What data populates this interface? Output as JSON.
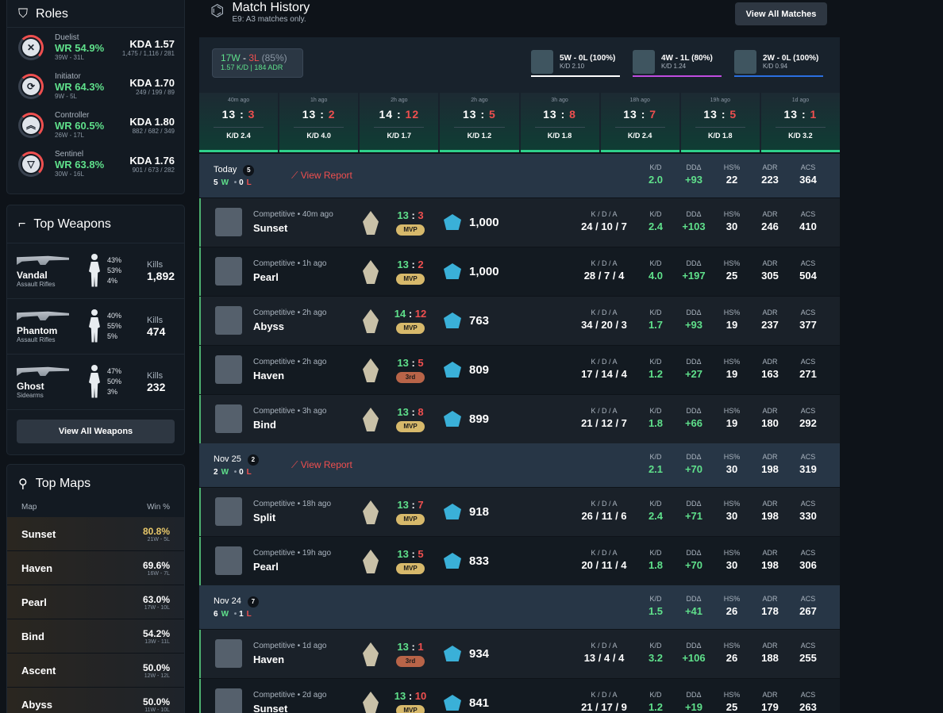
{
  "roles": {
    "title": "Roles",
    "items": [
      {
        "glyph": "✕",
        "name": "Duelist",
        "wr": "WR 54.9%",
        "wl": "39W - 31L",
        "kda": "KDA 1.57",
        "k": "1,475 / 1,116 / 281"
      },
      {
        "glyph": "⟳",
        "name": "Initiator",
        "wr": "WR 64.3%",
        "wl": "9W - 5L",
        "kda": "KDA 1.70",
        "k": "249 / 199 / 89"
      },
      {
        "glyph": "︽",
        "name": "Controller",
        "wr": "WR 60.5%",
        "wl": "26W - 17L",
        "kda": "KDA 1.80",
        "k": "882 / 682 / 349"
      },
      {
        "glyph": "▽",
        "name": "Sentinel",
        "wr": "WR 63.8%",
        "wl": "30W - 16L",
        "kda": "KDA 1.76",
        "k": "901 / 673 / 282"
      }
    ]
  },
  "weapons": {
    "title": "Top Weapons",
    "button": "View All Weapons",
    "kills_label": "Kills",
    "items": [
      {
        "name": "Vandal",
        "cat": "Assault Rifles",
        "p1": "43%",
        "p2": "53%",
        "p3": "4%",
        "kills": "1,892"
      },
      {
        "name": "Phantom",
        "cat": "Assault Rifles",
        "p1": "40%",
        "p2": "55%",
        "p3": "5%",
        "kills": "474"
      },
      {
        "name": "Ghost",
        "cat": "Sidearms",
        "p1": "47%",
        "p2": "50%",
        "p3": "3%",
        "kills": "232"
      }
    ]
  },
  "maps": {
    "title": "Top Maps",
    "col1": "Map",
    "col2": "Win %",
    "items": [
      {
        "name": "Sunset",
        "pct": "80.8%",
        "wl": "21W - 5L",
        "gold": true
      },
      {
        "name": "Haven",
        "pct": "69.6%",
        "wl": "16W - 7L"
      },
      {
        "name": "Pearl",
        "pct": "63.0%",
        "wl": "17W - 10L"
      },
      {
        "name": "Bind",
        "pct": "54.2%",
        "wl": "13W - 11L"
      },
      {
        "name": "Ascent",
        "pct": "50.0%",
        "wl": "12W - 12L"
      },
      {
        "name": "Abyss",
        "pct": "50.0%",
        "wl": "11W - 10L"
      }
    ]
  },
  "history": {
    "title": "Match History",
    "subtitle": "E9: A3 matches only.",
    "button": "View All Matches",
    "w": "17W",
    "sep": " - ",
    "l": "3L",
    "pct": " (85%)",
    "kdadr": "1.57 K/D | 184 ADR",
    "agents": [
      {
        "t1": "5W - 0L (100%)",
        "t2": "K/D 2.10",
        "color": "#ffffff"
      },
      {
        "t1": "4W - 1L (80%)",
        "t2": "K/D 1.24",
        "color": "#c04ce0"
      },
      {
        "t1": "2W - 0L (100%)",
        "t2": "K/D 0.94",
        "color": "#2b6fe0"
      }
    ],
    "games": [
      {
        "ago": "40m ago",
        "a": "13",
        "b": "3",
        "kd": "K/D 2.4"
      },
      {
        "ago": "1h ago",
        "a": "13",
        "b": "2",
        "kd": "K/D 4.0"
      },
      {
        "ago": "2h ago",
        "a": "14",
        "b": "12",
        "kd": "K/D 1.7"
      },
      {
        "ago": "2h ago",
        "a": "13",
        "b": "5",
        "kd": "K/D 1.2"
      },
      {
        "ago": "3h ago",
        "a": "13",
        "b": "8",
        "kd": "K/D 1.8"
      },
      {
        "ago": "18h ago",
        "a": "13",
        "b": "7",
        "kd": "K/D 2.4"
      },
      {
        "ago": "19h ago",
        "a": "13",
        "b": "5",
        "kd": "K/D 1.8"
      },
      {
        "ago": "1d ago",
        "a": "13",
        "b": "1",
        "kd": "K/D 3.2"
      }
    ],
    "labels": {
      "kd": "K/D",
      "dd": "DDΔ",
      "hs": "HS%",
      "adr": "ADR",
      "acs": "ACS",
      "kda": "K / D / A",
      "report": "View Report",
      "w": "W",
      "l": "L",
      "dot": " • "
    }
  },
  "days": [
    {
      "date": "Today",
      "count": "5",
      "w": "5",
      "l": "0",
      "report": true,
      "kd": "2.0",
      "dd": "+93",
      "hs": "22",
      "adr": "223",
      "acs": "364",
      "matches": [
        {
          "type": "Competitive • 40m ago",
          "map": "Sunset",
          "a": "13",
          "b": "3",
          "badge": "MVP",
          "rr": "1,000",
          "kda": "24 / 10 / 7",
          "kd": "2.4",
          "dd": "+103",
          "hs": "30",
          "adr": "246",
          "acs": "410"
        },
        {
          "type": "Competitive • 1h ago",
          "map": "Pearl",
          "a": "13",
          "b": "2",
          "badge": "MVP",
          "rr": "1,000",
          "kda": "28 / 7 / 4",
          "kd": "4.0",
          "dd": "+197",
          "hs": "25",
          "adr": "305",
          "acs": "504"
        },
        {
          "type": "Competitive • 2h ago",
          "map": "Abyss",
          "a": "14",
          "b": "12",
          "badge": "MVP",
          "rr": "763",
          "kda": "34 / 20 / 3",
          "kd": "1.7",
          "dd": "+93",
          "hs": "19",
          "adr": "237",
          "acs": "377"
        },
        {
          "type": "Competitive • 2h ago",
          "map": "Haven",
          "a": "13",
          "b": "5",
          "badge": "3rd",
          "rr": "809",
          "kda": "17 / 14 / 4",
          "kd": "1.2",
          "dd": "+27",
          "hs": "19",
          "adr": "163",
          "acs": "271"
        },
        {
          "type": "Competitive • 3h ago",
          "map": "Bind",
          "a": "13",
          "b": "8",
          "badge": "MVP",
          "rr": "899",
          "kda": "21 / 12 / 7",
          "kd": "1.8",
          "dd": "+66",
          "hs": "19",
          "adr": "180",
          "acs": "292"
        }
      ]
    },
    {
      "date": "Nov 25",
      "count": "2",
      "w": "2",
      "l": "0",
      "report": true,
      "kd": "2.1",
      "dd": "+70",
      "hs": "30",
      "adr": "198",
      "acs": "319",
      "matches": [
        {
          "type": "Competitive • 18h ago",
          "map": "Split",
          "a": "13",
          "b": "7",
          "badge": "MVP",
          "rr": "918",
          "kda": "26 / 11 / 6",
          "kd": "2.4",
          "dd": "+71",
          "hs": "30",
          "adr": "198",
          "acs": "330"
        },
        {
          "type": "Competitive • 19h ago",
          "map": "Pearl",
          "a": "13",
          "b": "5",
          "badge": "MVP",
          "rr": "833",
          "kda": "20 / 11 / 4",
          "kd": "1.8",
          "dd": "+70",
          "hs": "30",
          "adr": "198",
          "acs": "306"
        }
      ]
    },
    {
      "date": "Nov 24",
      "count": "7",
      "w": "6",
      "l": "1",
      "report": false,
      "kd": "1.5",
      "dd": "+41",
      "hs": "26",
      "adr": "178",
      "acs": "267",
      "matches": [
        {
          "type": "Competitive • 1d ago",
          "map": "Haven",
          "a": "13",
          "b": "1",
          "badge": "3rd",
          "rr": "934",
          "kda": "13 / 4 / 4",
          "kd": "3.2",
          "dd": "+106",
          "hs": "26",
          "adr": "188",
          "acs": "255"
        },
        {
          "type": "Competitive • 2d ago",
          "map": "Sunset",
          "a": "13",
          "b": "10",
          "badge": "MVP",
          "rr": "841",
          "kda": "21 / 17 / 9",
          "kd": "1.2",
          "dd": "+19",
          "hs": "25",
          "adr": "179",
          "acs": "263"
        }
      ]
    }
  ]
}
